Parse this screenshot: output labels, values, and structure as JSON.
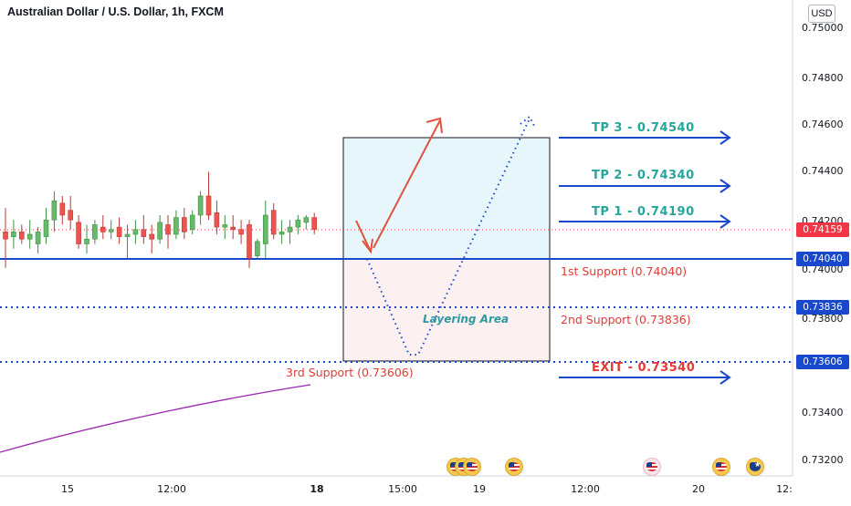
{
  "header": {
    "title": "Australian Dollar / U.S. Dollar, 1h, FXCM",
    "currency": "USD"
  },
  "price_axis": {
    "ticks": [
      "0.75000",
      "0.74800",
      "0.74600",
      "0.74400",
      "0.74200",
      "0.74000",
      "0.73800",
      "0.73400",
      "0.73200"
    ]
  },
  "price_tags": {
    "current": "0.74159",
    "support1": "0.74040",
    "support2": "0.73836",
    "support3": "0.73606",
    "current_color": "#f23645",
    "level_color": "#1848cc"
  },
  "time_axis": {
    "ticks": [
      "15",
      "12:00",
      "18",
      "15:00",
      "19",
      "12:00",
      "20",
      "12:"
    ]
  },
  "annotations": {
    "tp3": "TP 3 - 0.74540",
    "tp2": "TP 2 - 0.74340",
    "tp1": "TP 1 - 0.74190",
    "exit": "EXIT - 0.73540",
    "support1": "1st Support (0.74040)",
    "support2": "2nd Support (0.73836)",
    "support3": "3rd Support (0.73606)",
    "layering": "Layering Area"
  },
  "events": {
    "icons": [
      "us-flag-icon",
      "us-flag-icon",
      "us-flag-icon",
      "us-flag-icon",
      "us-flag-icon",
      "us-flag-icon",
      "australia-flag-icon"
    ]
  },
  "chart_data": {
    "type": "candlestick",
    "title": "Australian Dollar / U.S. Dollar, 1h, FXCM",
    "x_ticks": [
      "15",
      "12:00",
      "18",
      "15:00",
      "19",
      "12:00",
      "20",
      "12:"
    ],
    "y_ticks": [
      0.75,
      0.748,
      0.746,
      0.744,
      0.742,
      0.74,
      0.738,
      0.734,
      0.732
    ],
    "ylim": [
      0.7315,
      0.7512
    ],
    "candles": [
      {
        "o": 0.7415,
        "h": 0.7425,
        "l": 0.74,
        "c": 0.7412
      },
      {
        "o": 0.7413,
        "h": 0.742,
        "l": 0.7408,
        "c": 0.7415
      },
      {
        "o": 0.7415,
        "h": 0.7418,
        "l": 0.741,
        "c": 0.7412
      },
      {
        "o": 0.7412,
        "h": 0.742,
        "l": 0.7408,
        "c": 0.7414
      },
      {
        "o": 0.741,
        "h": 0.7417,
        "l": 0.7406,
        "c": 0.7415
      },
      {
        "o": 0.7413,
        "h": 0.7425,
        "l": 0.741,
        "c": 0.742
      },
      {
        "o": 0.742,
        "h": 0.7432,
        "l": 0.7415,
        "c": 0.7428
      },
      {
        "o": 0.7427,
        "h": 0.743,
        "l": 0.7418,
        "c": 0.7422
      },
      {
        "o": 0.7424,
        "h": 0.743,
        "l": 0.7416,
        "c": 0.742
      },
      {
        "o": 0.7419,
        "h": 0.7422,
        "l": 0.7408,
        "c": 0.741
      },
      {
        "o": 0.741,
        "h": 0.7418,
        "l": 0.7406,
        "c": 0.7412
      },
      {
        "o": 0.7412,
        "h": 0.742,
        "l": 0.741,
        "c": 0.7418
      },
      {
        "o": 0.7417,
        "h": 0.7422,
        "l": 0.7412,
        "c": 0.7415
      },
      {
        "o": 0.7415,
        "h": 0.742,
        "l": 0.7412,
        "c": 0.7416
      },
      {
        "o": 0.7417,
        "h": 0.7421,
        "l": 0.741,
        "c": 0.7413
      },
      {
        "o": 0.7413,
        "h": 0.7418,
        "l": 0.7404,
        "c": 0.7414
      },
      {
        "o": 0.7414,
        "h": 0.742,
        "l": 0.741,
        "c": 0.7416
      },
      {
        "o": 0.7416,
        "h": 0.7422,
        "l": 0.741,
        "c": 0.7413
      },
      {
        "o": 0.7414,
        "h": 0.7418,
        "l": 0.7406,
        "c": 0.7412
      },
      {
        "o": 0.7412,
        "h": 0.7422,
        "l": 0.741,
        "c": 0.7419
      },
      {
        "o": 0.7418,
        "h": 0.7422,
        "l": 0.7408,
        "c": 0.7414
      },
      {
        "o": 0.7414,
        "h": 0.7424,
        "l": 0.7412,
        "c": 0.7421
      },
      {
        "o": 0.7421,
        "h": 0.7425,
        "l": 0.7412,
        "c": 0.7415
      },
      {
        "o": 0.7416,
        "h": 0.7424,
        "l": 0.7414,
        "c": 0.7422
      },
      {
        "o": 0.7422,
        "h": 0.7432,
        "l": 0.7418,
        "c": 0.743
      },
      {
        "o": 0.743,
        "h": 0.744,
        "l": 0.742,
        "c": 0.7422
      },
      {
        "o": 0.7423,
        "h": 0.7428,
        "l": 0.7414,
        "c": 0.7417
      },
      {
        "o": 0.7417,
        "h": 0.7422,
        "l": 0.7412,
        "c": 0.7418
      },
      {
        "o": 0.7417,
        "h": 0.7422,
        "l": 0.7412,
        "c": 0.7416
      },
      {
        "o": 0.7416,
        "h": 0.742,
        "l": 0.741,
        "c": 0.7414
      },
      {
        "o": 0.7418,
        "h": 0.742,
        "l": 0.74,
        "c": 0.7404
      },
      {
        "o": 0.7405,
        "h": 0.7412,
        "l": 0.7404,
        "c": 0.7411
      },
      {
        "o": 0.741,
        "h": 0.7428,
        "l": 0.7404,
        "c": 0.7422
      },
      {
        "o": 0.7424,
        "h": 0.7427,
        "l": 0.7412,
        "c": 0.7414
      },
      {
        "o": 0.7414,
        "h": 0.742,
        "l": 0.741,
        "c": 0.7415
      },
      {
        "o": 0.7415,
        "h": 0.742,
        "l": 0.741,
        "c": 0.7417
      },
      {
        "o": 0.7417,
        "h": 0.7422,
        "l": 0.7414,
        "c": 0.742
      },
      {
        "o": 0.7419,
        "h": 0.7422,
        "l": 0.7416,
        "c": 0.7421
      },
      {
        "o": 0.7421,
        "h": 0.7423,
        "l": 0.7414,
        "c": 0.7416
      }
    ],
    "levels": [
      {
        "price": 0.7404,
        "style": "solid",
        "color": "#1848cc"
      },
      {
        "price": 0.73836,
        "style": "dotted",
        "color": "#1848cc"
      },
      {
        "price": 0.73606,
        "style": "dotted",
        "color": "#1848cc"
      },
      {
        "price": 0.74159,
        "style": "dotted",
        "color": "#f23645"
      }
    ],
    "zones": [
      {
        "from": 0.7404,
        "to": 0.7454,
        "color": "#e6f6fb"
      },
      {
        "from": 0.7362,
        "to": 0.7404,
        "color": "#fcf0f0"
      }
    ],
    "colors": {
      "up": "#66bb6a",
      "down": "#ef5350",
      "line": "#9c27b0"
    }
  }
}
